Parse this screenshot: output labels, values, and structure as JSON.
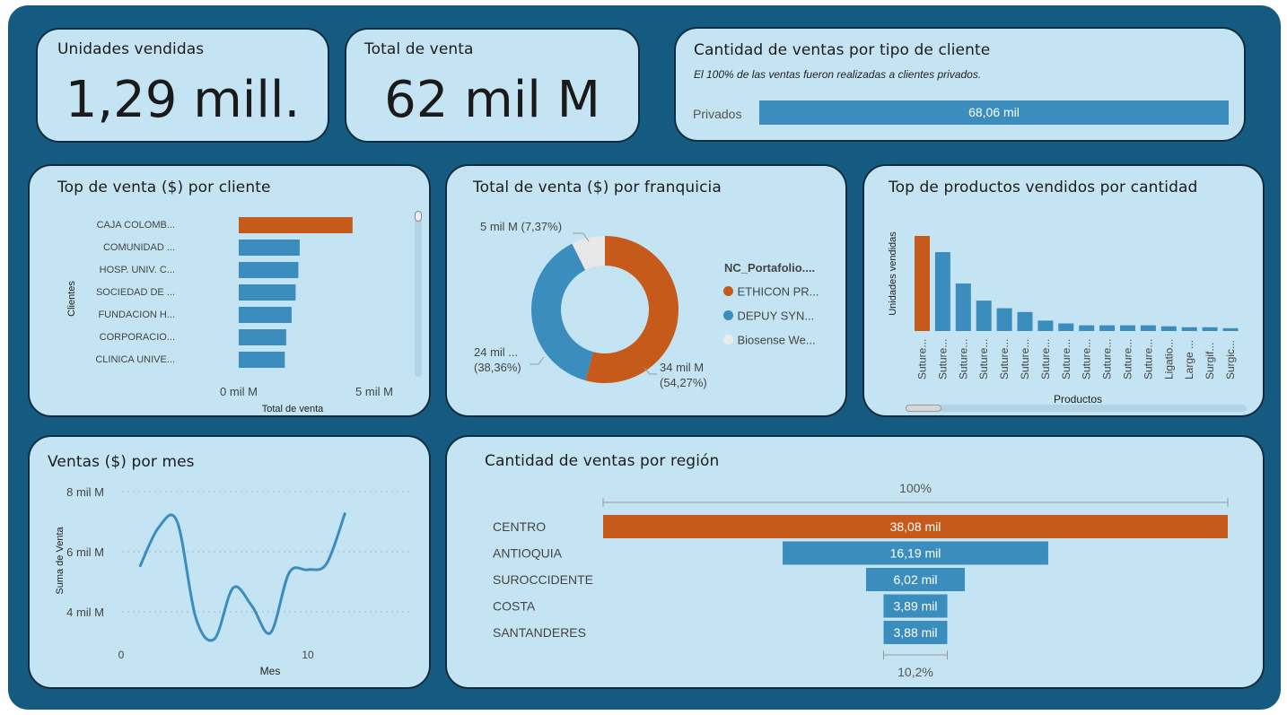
{
  "kpi_units": {
    "title": "Unidades vendidas",
    "value": "1,29 mill."
  },
  "kpi_sales": {
    "title": "Total de venta",
    "value": "62 mil M"
  },
  "client_type": {
    "title": "Cantidad de ventas por tipo de cliente",
    "subtitle": "El 100% de las ventas fueron realizadas a clientes privados.",
    "category": "Privados",
    "value_label": "68,06 mil",
    "fraction": 1.0
  },
  "top_clients": {
    "title": "Top de venta ($) por cliente",
    "xlabel": "Total de venta",
    "ylabel": "Clientes",
    "ticks": [
      "0 mil M",
      "5 mil M"
    ]
  },
  "franchise": {
    "title": "Total de venta ($) por franquicia",
    "legend_title": "NC_Portafolio....",
    "labels": {
      "ethicon": "34 mil M (54,27%)",
      "depuy_a": "24 mil ...",
      "depuy_b": "(38,36%)",
      "biosense": "5 mil M (7,37%)"
    },
    "legend": [
      "ETHICON PR...",
      "DEPUY SYN...",
      "Biosense We..."
    ]
  },
  "top_products": {
    "title": "Top de productos vendidos por cantidad",
    "xlabel": "Productos",
    "ylabel": "Unidades vendidas"
  },
  "monthly": {
    "title": "Ventas ($) por mes",
    "xlabel": "Mes",
    "ylabel": "Suma de Venta",
    "yticks": [
      "8 mil M",
      "6 mil M",
      "4 mil M"
    ],
    "xticks": [
      "0",
      "10"
    ]
  },
  "region": {
    "title": "Cantidad de ventas por región",
    "top_pct": "100%",
    "bottom_pct": "10,2%"
  },
  "chart_data": [
    {
      "type": "bar",
      "orientation": "horizontal",
      "title": "Top de venta ($) por cliente",
      "categories": [
        "CAJA COLOMB...",
        "COMUNIDAD ...",
        "HOSP. UNIV. C...",
        "SOCIEDAD DE ...",
        "FUNDACION H...",
        "CORPORACIO...",
        "CLINICA UNIVE..."
      ],
      "values": [
        4.2,
        2.25,
        2.2,
        2.1,
        1.95,
        1.75,
        1.7
      ],
      "xlim": [
        0,
        5
      ],
      "xlabel": "Total de venta",
      "ylabel": "Clientes",
      "highlight_color": "#c55a1b",
      "color": "#3a8dbd"
    },
    {
      "type": "pie",
      "donut": true,
      "title": "Total de venta ($) por franquicia",
      "categories": [
        "ETHICON PR...",
        "DEPUY SYN...",
        "Biosense We..."
      ],
      "values": [
        54.27,
        38.36,
        7.37
      ],
      "colors": [
        "#c55a1b",
        "#3a8dbd",
        "#e8e8e8"
      ]
    },
    {
      "type": "bar",
      "title": "Top de productos vendidos por cantidad",
      "categories": [
        "Suture...",
        "Suture...",
        "Suture...",
        "Suture...",
        "Suture...",
        "Suture...",
        "Suture...",
        "Suture...",
        "Suture...",
        "Suture...",
        "Suture...",
        "Suture...",
        "Ligatio...",
        "Large ...",
        "Surgif...",
        "Surgic..."
      ],
      "values": [
        100,
        83,
        50,
        32,
        24,
        20,
        11,
        8,
        6,
        6,
        6,
        6,
        5,
        4,
        4,
        3
      ],
      "xlabel": "Productos",
      "ylabel": "Unidades vendidas",
      "highlight_color": "#c55a1b",
      "color": "#3a8dbd"
    },
    {
      "type": "line",
      "title": "Ventas ($) por mes",
      "x": [
        1,
        2,
        3,
        4,
        5,
        6,
        7,
        8,
        9,
        10,
        11,
        12
      ],
      "y": [
        5.5,
        6.8,
        7.0,
        3.8,
        3.1,
        4.8,
        4.2,
        3.3,
        5.3,
        5.4,
        5.6,
        7.3
      ],
      "xlim": [
        0,
        15
      ],
      "ylim": [
        3,
        8
      ],
      "xlabel": "Mes",
      "ylabel": "Suma de Venta",
      "color": "#3a8dbd"
    },
    {
      "type": "bar",
      "subtype": "funnel",
      "title": "Cantidad de ventas por región",
      "categories": [
        "CENTRO",
        "ANTIOQUIA",
        "SUROCCIDENTE",
        "COSTA",
        "SANTANDERES"
      ],
      "values": [
        38.08,
        16.19,
        6.02,
        3.89,
        3.88
      ],
      "value_labels": [
        "38,08 mil",
        "16,19 mil",
        "6,02 mil",
        "3,89 mil",
        "3,88 mil"
      ],
      "highlight_color": "#c55a1b",
      "color": "#3a8dbd"
    }
  ]
}
